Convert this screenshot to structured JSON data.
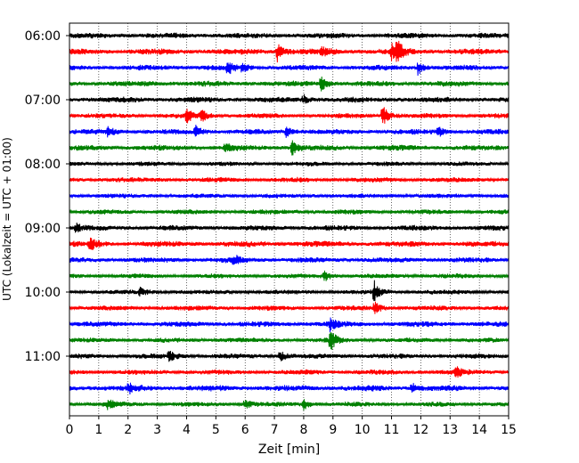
{
  "chart_data": {
    "type": "line",
    "title": "",
    "xlabel": "Zeit  [min]",
    "ylabel": "UTC (Lokalzeit = UTC + 01:00)",
    "xlim": [
      0,
      15
    ],
    "x_ticks": [
      "0",
      "1",
      "2",
      "3",
      "4",
      "5",
      "6",
      "7",
      "8",
      "9",
      "10",
      "11",
      "12",
      "13",
      "14",
      "15"
    ],
    "y_tick_labels": [
      "06:00",
      "07:00",
      "08:00",
      "09:00",
      "10:00",
      "11:00"
    ],
    "grid": "vertical dotted lines at each minute",
    "trace_interval_min": 15,
    "first_trace_start": "06:00",
    "colors": [
      "#000000",
      "#ff0000",
      "#0000ff",
      "#008000"
    ],
    "traces": [
      {
        "start": "06:00",
        "color": "#000000",
        "events": []
      },
      {
        "start": "06:15",
        "color": "#ff0000",
        "events": [
          {
            "t": 7.1,
            "amp": 1.2
          },
          {
            "t": 8.6,
            "amp": 0.8
          },
          {
            "t": 11.2,
            "amp": 1.3
          },
          {
            "t": 11.0,
            "amp": 0.9
          }
        ]
      },
      {
        "start": "06:30",
        "color": "#0000ff",
        "events": [
          {
            "t": 5.4,
            "amp": 0.8
          },
          {
            "t": 5.9,
            "amp": 0.6
          },
          {
            "t": 11.9,
            "amp": 0.9
          }
        ]
      },
      {
        "start": "06:45",
        "color": "#008000",
        "events": [
          {
            "t": 8.6,
            "amp": 1.0
          }
        ]
      },
      {
        "start": "07:00",
        "color": "#000000",
        "events": [
          {
            "t": 8.0,
            "amp": 0.5
          }
        ]
      },
      {
        "start": "07:15",
        "color": "#ff0000",
        "events": [
          {
            "t": 4.0,
            "amp": 0.8
          },
          {
            "t": 4.5,
            "amp": 0.9
          },
          {
            "t": 10.7,
            "amp": 1.3
          }
        ]
      },
      {
        "start": "07:30",
        "color": "#0000ff",
        "events": [
          {
            "t": 1.3,
            "amp": 0.6
          },
          {
            "t": 4.3,
            "amp": 0.9
          },
          {
            "t": 7.4,
            "amp": 0.7
          },
          {
            "t": 12.6,
            "amp": 0.6
          }
        ]
      },
      {
        "start": "07:45",
        "color": "#008000",
        "events": [
          {
            "t": 5.3,
            "amp": 0.5
          },
          {
            "t": 7.6,
            "amp": 0.9
          }
        ]
      },
      {
        "start": "08:00",
        "color": "#000000",
        "events": []
      },
      {
        "start": "08:15",
        "color": "#ff0000",
        "events": []
      },
      {
        "start": "08:30",
        "color": "#0000ff",
        "events": []
      },
      {
        "start": "08:45",
        "color": "#008000",
        "events": []
      },
      {
        "start": "09:00",
        "color": "#000000",
        "events": [
          {
            "t": 0.2,
            "amp": 0.6
          }
        ]
      },
      {
        "start": "09:15",
        "color": "#ff0000",
        "events": [
          {
            "t": 0.7,
            "amp": 0.7
          }
        ]
      },
      {
        "start": "09:30",
        "color": "#0000ff",
        "events": [
          {
            "t": 5.6,
            "amp": 0.6
          }
        ]
      },
      {
        "start": "09:45",
        "color": "#008000",
        "events": [
          {
            "t": 8.7,
            "amp": 0.7
          }
        ]
      },
      {
        "start": "10:00",
        "color": "#000000",
        "events": [
          {
            "t": 10.4,
            "amp": 1.4
          },
          {
            "t": 2.4,
            "amp": 0.5
          }
        ]
      },
      {
        "start": "10:15",
        "color": "#ff0000",
        "events": [
          {
            "t": 10.4,
            "amp": 0.9
          }
        ]
      },
      {
        "start": "10:30",
        "color": "#0000ff",
        "events": [
          {
            "t": 8.9,
            "amp": 0.8
          }
        ]
      },
      {
        "start": "10:45",
        "color": "#008000",
        "events": [
          {
            "t": 8.9,
            "amp": 1.4
          }
        ]
      },
      {
        "start": "11:00",
        "color": "#000000",
        "events": [
          {
            "t": 3.4,
            "amp": 0.7
          },
          {
            "t": 7.2,
            "amp": 0.6
          }
        ]
      },
      {
        "start": "11:15",
        "color": "#ff0000",
        "events": [
          {
            "t": 13.2,
            "amp": 0.6
          }
        ]
      },
      {
        "start": "11:30",
        "color": "#0000ff",
        "events": [
          {
            "t": 11.7,
            "amp": 0.7
          },
          {
            "t": 2.0,
            "amp": 0.6
          }
        ]
      },
      {
        "start": "11:45",
        "color": "#008000",
        "events": [
          {
            "t": 1.3,
            "amp": 0.6
          },
          {
            "t": 6.0,
            "amp": 0.6
          },
          {
            "t": 8.0,
            "amp": 0.7
          }
        ]
      }
    ]
  }
}
